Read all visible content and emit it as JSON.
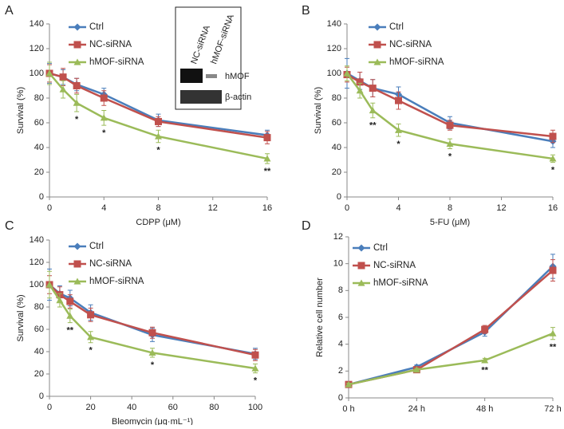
{
  "chart_data": [
    {
      "type": "line",
      "panel": "A",
      "xlabel": "CDPP (μM)",
      "ylabel": "Survival (%)",
      "x": [
        0,
        1,
        2,
        4,
        8,
        16
      ],
      "xlim": [
        0,
        16
      ],
      "xticks": [
        0,
        4,
        8,
        12,
        16
      ],
      "ylim": [
        0,
        140
      ],
      "yticks": [
        0,
        20,
        40,
        60,
        80,
        100,
        120,
        140
      ],
      "series": [
        {
          "name": "Ctrl",
          "color": "#4a7ebb",
          "marker": "diamond",
          "values": [
            100,
            97,
            91,
            83,
            62,
            50
          ],
          "errors": [
            8,
            6,
            5,
            5,
            5,
            4
          ]
        },
        {
          "name": "NC-siRNA",
          "color": "#c0504d",
          "marker": "square",
          "values": [
            100,
            97,
            90,
            80,
            61,
            48
          ],
          "errors": [
            7,
            7,
            6,
            6,
            4,
            5
          ]
        },
        {
          "name": "hMOF-siRNA",
          "color": "#9bbb59",
          "marker": "triangle",
          "values": [
            100,
            87,
            76,
            64,
            49,
            31
          ],
          "errors": [
            9,
            7,
            7,
            6,
            5,
            4
          ]
        }
      ],
      "annotations": [
        {
          "x": 2,
          "text": "*"
        },
        {
          "x": 4,
          "text": "*"
        },
        {
          "x": 8,
          "text": "*"
        },
        {
          "x": 16,
          "text": "**"
        }
      ],
      "inset": {
        "column_labels": [
          "NC-siRNA",
          "hMOF-siRNA"
        ],
        "row_labels": [
          "hMOF",
          "β-actin"
        ]
      }
    },
    {
      "type": "line",
      "panel": "B",
      "xlabel": "5-FU (μM)",
      "ylabel": "Survival (%)",
      "x": [
        0,
        1,
        2,
        4,
        8,
        16
      ],
      "xlim": [
        0,
        16
      ],
      "xticks": [
        0,
        4,
        8,
        12,
        16
      ],
      "ylim": [
        0,
        140
      ],
      "yticks": [
        0,
        20,
        40,
        60,
        80,
        100,
        120,
        140
      ],
      "series": [
        {
          "name": "Ctrl",
          "color": "#4a7ebb",
          "marker": "diamond",
          "values": [
            100,
            94,
            88,
            83,
            60,
            45
          ],
          "errors": [
            12,
            7,
            7,
            6,
            5,
            5
          ]
        },
        {
          "name": "NC-siRNA",
          "color": "#c0504d",
          "marker": "square",
          "values": [
            99,
            93,
            88,
            78,
            58,
            49
          ],
          "errors": [
            6,
            8,
            7,
            7,
            4,
            5
          ]
        },
        {
          "name": "hMOF-siRNA",
          "color": "#9bbb59",
          "marker": "triangle",
          "values": [
            100,
            86,
            70,
            54,
            43,
            31
          ],
          "errors": [
            6,
            6,
            6,
            5,
            4,
            3
          ]
        }
      ],
      "annotations": [
        {
          "x": 2,
          "text": "**"
        },
        {
          "x": 4,
          "text": "*"
        },
        {
          "x": 8,
          "text": "*"
        },
        {
          "x": 16,
          "text": "*"
        }
      ]
    },
    {
      "type": "line",
      "panel": "C",
      "xlabel": "Bleomycin (μg·mL⁻¹)",
      "ylabel": "Survival (%)",
      "x": [
        0,
        5,
        10,
        20,
        50,
        100
      ],
      "xlim": [
        0,
        100
      ],
      "xticks": [
        0,
        20,
        40,
        60,
        80,
        100
      ],
      "ylim": [
        0,
        140
      ],
      "yticks": [
        0,
        20,
        40,
        60,
        80,
        100,
        120,
        140
      ],
      "series": [
        {
          "name": "Ctrl",
          "color": "#4a7ebb",
          "marker": "diamond",
          "values": [
            100,
            92,
            88,
            75,
            55,
            38
          ],
          "errors": [
            14,
            7,
            7,
            7,
            6,
            5
          ]
        },
        {
          "name": "NC-siRNA",
          "color": "#c0504d",
          "marker": "square",
          "values": [
            100,
            91,
            85,
            73,
            57,
            37
          ],
          "errors": [
            8,
            7,
            6,
            6,
            5,
            5
          ]
        },
        {
          "name": "hMOF-siRNA",
          "color": "#9bbb59",
          "marker": "triangle",
          "values": [
            100,
            86,
            72,
            53,
            39,
            25
          ],
          "errors": [
            12,
            6,
            6,
            5,
            4,
            4
          ]
        }
      ],
      "annotations": [
        {
          "x": 10,
          "text": "**"
        },
        {
          "x": 20,
          "text": "*"
        },
        {
          "x": 50,
          "text": "*"
        },
        {
          "x": 100,
          "text": "*"
        }
      ]
    },
    {
      "type": "line",
      "panel": "D",
      "ylabel": "Relative cell number",
      "categories": [
        "0 h",
        "24 h",
        "48 h",
        "72 h"
      ],
      "ylim": [
        0,
        12
      ],
      "yticks": [
        0,
        2,
        4,
        6,
        8,
        10,
        12
      ],
      "series": [
        {
          "name": "Ctrl",
          "color": "#4a7ebb",
          "marker": "diamond",
          "values": [
            1,
            2.3,
            4.9,
            9.8
          ],
          "errors": [
            0.1,
            0.15,
            0.3,
            0.9
          ]
        },
        {
          "name": "NC-siRNA",
          "color": "#c0504d",
          "marker": "square",
          "values": [
            1,
            2.1,
            5.1,
            9.5
          ],
          "errors": [
            0.1,
            0.15,
            0.3,
            0.8
          ]
        },
        {
          "name": "hMOF-siRNA",
          "color": "#9bbb59",
          "marker": "triangle",
          "values": [
            1,
            2.1,
            2.8,
            4.8
          ],
          "errors": [
            0.1,
            0.1,
            0.15,
            0.45
          ]
        }
      ],
      "annotations": [
        {
          "x": "48 h",
          "text": "**"
        },
        {
          "x": "72 h",
          "text": "**"
        }
      ]
    }
  ]
}
